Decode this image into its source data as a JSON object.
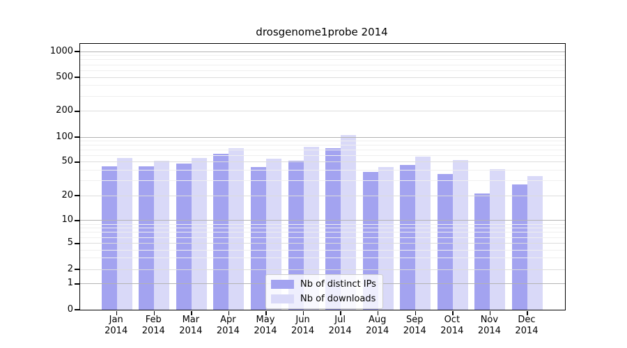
{
  "title": "drosgenome1probe 2014",
  "chart_data": {
    "type": "bar",
    "title": "drosgenome1probe 2014",
    "months": [
      "Jan",
      "Feb",
      "Mar",
      "Apr",
      "May",
      "Jun",
      "Jul",
      "Aug",
      "Sep",
      "Oct",
      "Nov",
      "Dec"
    ],
    "year_label": "2014",
    "categories": [
      "Jan 2014",
      "Feb 2014",
      "Mar 2014",
      "Apr 2014",
      "May 2014",
      "Jun 2014",
      "Jul 2014",
      "Aug 2014",
      "Sep 2014",
      "Oct 2014",
      "Nov 2014",
      "Dec 2014"
    ],
    "series": [
      {
        "name": "Nb of distinct IPs",
        "color": "#a3a3f0",
        "values": [
          45,
          45,
          48,
          63,
          44,
          52,
          73,
          38,
          46,
          36,
          21,
          27
        ]
      },
      {
        "name": "Nb of downloads",
        "color": "#d9d9f8",
        "values": [
          56,
          52,
          56,
          73,
          55,
          76,
          105,
          44,
          58,
          53,
          41,
          34
        ]
      }
    ],
    "y_ticks": [
      0,
      1,
      2,
      5,
      10,
      20,
      50,
      100,
      200,
      500,
      1000
    ],
    "y_scale": "symlog",
    "ylim": [
      0,
      1230
    ],
    "xlabel": "",
    "ylabel": "",
    "grid": true,
    "grid_over_bars": true,
    "legend_position": "bottom-center-inside"
  },
  "legend": {
    "items": [
      {
        "label": "Nb of distinct IPs",
        "color": "#a3a3f0"
      },
      {
        "label": "Nb of downloads",
        "color": "#d9d9f8"
      }
    ]
  },
  "colors": {
    "distinct_ips": "#a3a3f0",
    "downloads": "#d9d9f8",
    "grid_decade": "#b3b3b3",
    "grid_major": "#dcdcdc",
    "grid_minor": "#efefef",
    "axis": "#000000",
    "background": "#ffffff"
  }
}
